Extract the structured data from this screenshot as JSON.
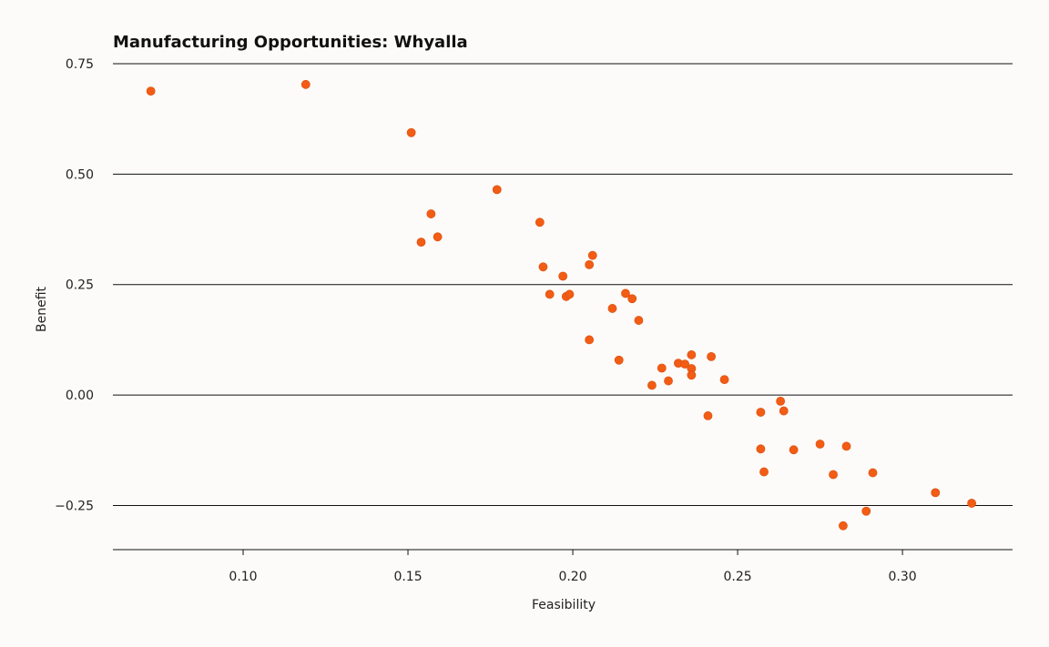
{
  "chart_data": {
    "type": "scatter",
    "title": "Manufacturing Opportunities: Whyalla",
    "xlabel": "Feasibility",
    "ylabel": "Benefit",
    "xlim": [
      0.0605,
      0.3334
    ],
    "ylim": [
      -0.35,
      0.75
    ],
    "xticks": [
      0.1,
      0.15,
      0.2,
      0.25,
      0.3
    ],
    "xtick_labels": [
      "0.10",
      "0.15",
      "0.20",
      "0.25",
      "0.30"
    ],
    "yticks": [
      0.75,
      0.5,
      0.25,
      0.0,
      -0.25
    ],
    "ytick_labels": [
      "0.75",
      "0.50",
      "0.25",
      "0.00",
      "−0.25"
    ],
    "grid": "horizontal",
    "marker_color": "#f25c14",
    "points": [
      {
        "x": 0.072,
        "y": 0.688
      },
      {
        "x": 0.119,
        "y": 0.703
      },
      {
        "x": 0.151,
        "y": 0.594
      },
      {
        "x": 0.154,
        "y": 0.346
      },
      {
        "x": 0.157,
        "y": 0.41
      },
      {
        "x": 0.159,
        "y": 0.358
      },
      {
        "x": 0.177,
        "y": 0.465
      },
      {
        "x": 0.19,
        "y": 0.391
      },
      {
        "x": 0.191,
        "y": 0.29
      },
      {
        "x": 0.193,
        "y": 0.228
      },
      {
        "x": 0.197,
        "y": 0.269
      },
      {
        "x": 0.198,
        "y": 0.223
      },
      {
        "x": 0.199,
        "y": 0.228
      },
      {
        "x": 0.205,
        "y": 0.295
      },
      {
        "x": 0.206,
        "y": 0.316
      },
      {
        "x": 0.205,
        "y": 0.125
      },
      {
        "x": 0.212,
        "y": 0.196
      },
      {
        "x": 0.214,
        "y": 0.079
      },
      {
        "x": 0.216,
        "y": 0.23
      },
      {
        "x": 0.218,
        "y": 0.218
      },
      {
        "x": 0.22,
        "y": 0.169
      },
      {
        "x": 0.224,
        "y": 0.022
      },
      {
        "x": 0.227,
        "y": 0.061
      },
      {
        "x": 0.229,
        "y": 0.032
      },
      {
        "x": 0.232,
        "y": 0.072
      },
      {
        "x": 0.234,
        "y": 0.07
      },
      {
        "x": 0.236,
        "y": 0.091
      },
      {
        "x": 0.236,
        "y": 0.06
      },
      {
        "x": 0.236,
        "y": 0.045
      },
      {
        "x": 0.242,
        "y": 0.087
      },
      {
        "x": 0.241,
        "y": -0.047
      },
      {
        "x": 0.246,
        "y": 0.035
      },
      {
        "x": 0.257,
        "y": -0.039
      },
      {
        "x": 0.257,
        "y": -0.122
      },
      {
        "x": 0.258,
        "y": -0.174
      },
      {
        "x": 0.263,
        "y": -0.014
      },
      {
        "x": 0.264,
        "y": -0.036
      },
      {
        "x": 0.267,
        "y": -0.124
      },
      {
        "x": 0.275,
        "y": -0.111
      },
      {
        "x": 0.279,
        "y": -0.18
      },
      {
        "x": 0.282,
        "y": -0.296
      },
      {
        "x": 0.283,
        "y": -0.116
      },
      {
        "x": 0.289,
        "y": -0.263
      },
      {
        "x": 0.291,
        "y": -0.176
      },
      {
        "x": 0.31,
        "y": -0.221
      },
      {
        "x": 0.321,
        "y": -0.245
      }
    ]
  }
}
